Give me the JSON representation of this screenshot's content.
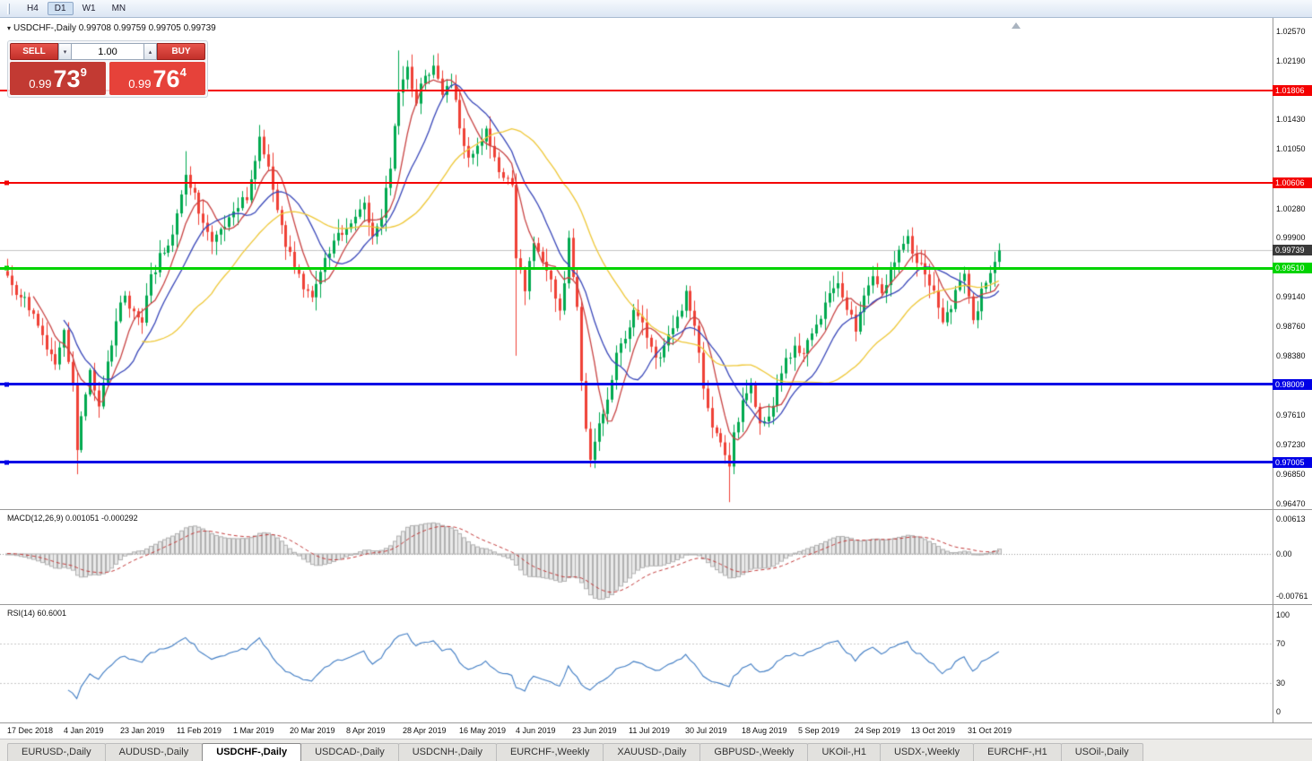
{
  "header": {
    "title": "USDCHF-,Daily  0.99708 0.99759 0.99705 0.99739"
  },
  "toolbar": {
    "timeframes": [
      "H4",
      "D1",
      "W1",
      "MN"
    ],
    "active": "D1"
  },
  "one_click": {
    "sell_label": "SELL",
    "buy_label": "BUY",
    "volume": "1.00",
    "sell_price": {
      "base": "0.99",
      "big": "73",
      "sup": "9"
    },
    "buy_price": {
      "base": "0.99",
      "big": "76",
      "sup": "4"
    }
  },
  "chart_data": {
    "type": "candlestick",
    "symbol": "USDCHF",
    "timeframe": "Daily",
    "ohlc_display": {
      "open": "0.99708",
      "high": "0.99759",
      "low": "0.99705",
      "close": "0.99739"
    },
    "ylim": [
      0.964,
      1.0274
    ],
    "up_color": "#00a94f",
    "down_color": "#ef4136",
    "price_ticks": [
      "1.02570",
      "1.02190",
      "1.01430",
      "1.01050",
      "1.00280",
      "0.99900",
      "0.99140",
      "0.98760",
      "0.98380",
      "0.97610",
      "0.97230",
      "0.96850",
      "0.96470"
    ],
    "levels": [
      {
        "price": 1.01806,
        "label": "1.01806",
        "color": "#f40000",
        "thickness": 2,
        "handle": false
      },
      {
        "price": 1.00606,
        "label": "1.00606",
        "color": "#f40000",
        "thickness": 2,
        "handle": true
      },
      {
        "price": 0.9951,
        "label": "0.99510",
        "color": "#00d300",
        "thickness": 3,
        "handle": true
      },
      {
        "price": 0.98009,
        "label": "0.98009",
        "color": "#0000e6",
        "thickness": 3,
        "handle": true
      },
      {
        "price": 0.97005,
        "label": "0.97005",
        "color": "#0000e6",
        "thickness": 3,
        "handle": true
      }
    ],
    "current_price": {
      "value": 0.99739,
      "label": "0.99739"
    },
    "candle_count": 229,
    "waypoints": [
      [
        0,
        0.9935
      ],
      [
        3,
        0.9915
      ],
      [
        6,
        0.9895
      ],
      [
        9,
        0.9845
      ],
      [
        11,
        0.9825
      ],
      [
        13,
        0.9865
      ],
      [
        15,
        0.9795
      ],
      [
        16,
        0.9715
      ],
      [
        17,
        0.9755
      ],
      [
        19,
        0.9815
      ],
      [
        21,
        0.9775
      ],
      [
        23,
        0.983
      ],
      [
        25,
        0.9885
      ],
      [
        27,
        0.9915
      ],
      [
        29,
        0.9895
      ],
      [
        31,
        0.9885
      ],
      [
        33,
        0.994
      ],
      [
        35,
        0.9965
      ],
      [
        37,
        0.9985
      ],
      [
        39,
        1.0015
      ],
      [
        41,
        1.0075
      ],
      [
        43,
        1.0045
      ],
      [
        45,
        1.001
      ],
      [
        47,
        0.9985
      ],
      [
        49,
        1.0
      ],
      [
        51,
        1.001
      ],
      [
        53,
        1.003
      ],
      [
        55,
        1.0045
      ],
      [
        57,
        1.0095
      ],
      [
        58,
        1.012
      ],
      [
        60,
        1.0085
      ],
      [
        62,
        1.003
      ],
      [
        64,
        0.9985
      ],
      [
        66,
        0.995
      ],
      [
        68,
        0.993
      ],
      [
        70,
        0.992
      ],
      [
        72,
        0.9945
      ],
      [
        74,
        0.9975
      ],
      [
        76,
        0.999
      ],
      [
        78,
        1.0005
      ],
      [
        80,
        1.002
      ],
      [
        82,
        1.0035
      ],
      [
        84,
        0.9995
      ],
      [
        86,
        1.0015
      ],
      [
        88,
        1.0085
      ],
      [
        90,
        1.0175
      ],
      [
        92,
        1.0205
      ],
      [
        94,
        1.017
      ],
      [
        96,
        1.0195
      ],
      [
        98,
        1.0218
      ],
      [
        100,
        1.017
      ],
      [
        102,
        1.019
      ],
      [
        104,
        1.0135
      ],
      [
        106,
        1.009
      ],
      [
        108,
        1.0105
      ],
      [
        110,
        1.0125
      ],
      [
        112,
        1.009
      ],
      [
        114,
        1.007
      ],
      [
        116,
        1.0055
      ],
      [
        117,
        0.9965
      ],
      [
        119,
        0.9925
      ],
      [
        121,
        0.9985
      ],
      [
        123,
        0.9965
      ],
      [
        125,
        0.9935
      ],
      [
        127,
        0.989
      ],
      [
        129,
        0.9985
      ],
      [
        130,
        0.994
      ],
      [
        131,
        0.99
      ],
      [
        132,
        0.98
      ],
      [
        133,
        0.9745
      ],
      [
        134,
        0.9705
      ],
      [
        136,
        0.9745
      ],
      [
        138,
        0.9785
      ],
      [
        140,
        0.9835
      ],
      [
        142,
        0.9865
      ],
      [
        144,
        0.9895
      ],
      [
        146,
        0.9875
      ],
      [
        148,
        0.985
      ],
      [
        150,
        0.983
      ],
      [
        152,
        0.9865
      ],
      [
        154,
        0.989
      ],
      [
        156,
        0.9915
      ],
      [
        158,
        0.987
      ],
      [
        160,
        0.98
      ],
      [
        162,
        0.9745
      ],
      [
        164,
        0.972
      ],
      [
        166,
        0.97
      ],
      [
        167,
        0.9735
      ],
      [
        169,
        0.9775
      ],
      [
        171,
        0.98
      ],
      [
        173,
        0.9745
      ],
      [
        175,
        0.976
      ],
      [
        177,
        0.98
      ],
      [
        179,
        0.983
      ],
      [
        181,
        0.985
      ],
      [
        183,
        0.9845
      ],
      [
        185,
        0.987
      ],
      [
        187,
        0.989
      ],
      [
        189,
        0.9915
      ],
      [
        191,
        0.993
      ],
      [
        193,
        0.99
      ],
      [
        195,
        0.9875
      ],
      [
        197,
        0.992
      ],
      [
        199,
        0.9945
      ],
      [
        201,
        0.9915
      ],
      [
        203,
        0.995
      ],
      [
        205,
        0.9975
      ],
      [
        207,
        0.999
      ],
      [
        209,
        0.996
      ],
      [
        211,
        0.9945
      ],
      [
        213,
        0.992
      ],
      [
        215,
        0.9885
      ],
      [
        217,
        0.9905
      ],
      [
        219,
        0.9935
      ],
      [
        220,
        0.995
      ],
      [
        221,
        0.9915
      ],
      [
        222,
        0.988
      ],
      [
        223,
        0.99
      ],
      [
        224,
        0.992
      ],
      [
        225,
        0.9935
      ],
      [
        226,
        0.9945
      ],
      [
        227,
        0.996
      ],
      [
        228,
        0.9974
      ]
    ],
    "spike_highs": [
      {
        "i": 41,
        "price": 1.0102
      },
      {
        "i": 58,
        "price": 1.0126
      },
      {
        "i": 90,
        "price": 1.0232
      },
      {
        "i": 98,
        "price": 1.0226
      }
    ],
    "spike_lows": [
      {
        "i": 16,
        "price": 0.9685
      },
      {
        "i": 117,
        "price": 0.9838
      },
      {
        "i": 134,
        "price": 0.9697
      },
      {
        "i": 166,
        "price": 0.9649
      }
    ],
    "moving_averages": [
      {
        "period": 7,
        "type": "sma",
        "color": "#c94444"
      },
      {
        "period": 14,
        "type": "sma",
        "color": "#3a48ba"
      },
      {
        "period": 32,
        "type": "sma",
        "color": "#efc838"
      }
    ],
    "date_labels": [
      "17 Dec 2018",
      "4 Jan 2019",
      "23 Jan 2019",
      "11 Feb 2019",
      "1 Mar 2019",
      "20 Mar 2019",
      "8 Apr 2019",
      "28 Apr 2019",
      "16 May 2019",
      "4 Jun 2019",
      "23 Jun 2019",
      "11 Jul 2019",
      "30 Jul 2019",
      "18 Aug 2019",
      "5 Sep 2019",
      "24 Sep 2019",
      "13 Oct 2019",
      "31 Oct 2019"
    ]
  },
  "indicators": {
    "macd": {
      "label": "MACD(12,26,9) 0.001051 -0.000292",
      "params": [
        12,
        26,
        9
      ],
      "values": [
        "0.001051",
        "-0.000292"
      ],
      "ylim": [
        -0.0092,
        0.0076
      ],
      "ticks": [
        {
          "v": 0.00613,
          "label": "0.00613"
        },
        {
          "v": 0,
          "label": "0.00"
        },
        {
          "v": -0.00761,
          "label": "-0.00761"
        }
      ],
      "histogram_fill": "#e9e9e9",
      "histogram_border": "#b2b2b2",
      "signal_color": "#c43b3b"
    },
    "rsi": {
      "label": "RSI(14) 60.6001",
      "period": 14,
      "value": "60.6001",
      "line_color": "#3f7cc4",
      "levels": [
        70,
        30
      ],
      "ticks": [
        {
          "v": 100,
          "label": "100"
        },
        {
          "v": 70,
          "label": "70"
        },
        {
          "v": 30,
          "label": "30"
        },
        {
          "v": 0,
          "label": "0"
        }
      ]
    }
  },
  "tabs": {
    "items": [
      "EURUSD-,Daily",
      "AUDUSD-,Daily",
      "USDCHF-,Daily",
      "USDCAD-,Daily",
      "USDCNH-,Daily",
      "EURCHF-,Weekly",
      "XAUUSD-,Daily",
      "GBPUSD-,Weekly",
      "UKOil-,H1",
      "USDX-,Weekly",
      "EURCHF-,H1",
      "USOil-,Daily"
    ],
    "active_index": 2
  }
}
